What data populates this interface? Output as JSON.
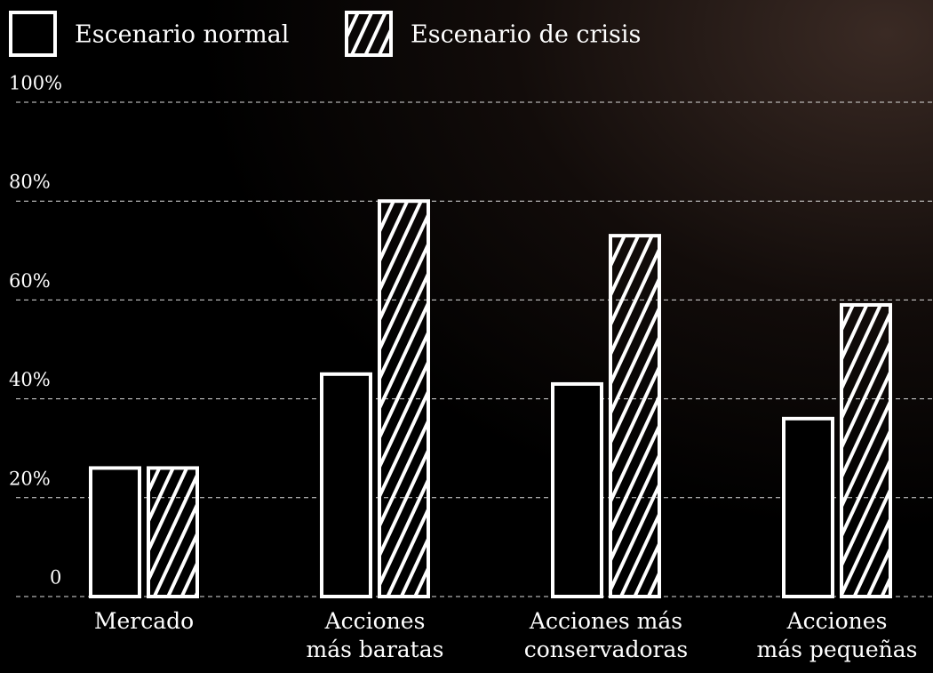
{
  "chart_data": {
    "type": "bar",
    "categories": [
      "Mercado",
      "Acciones\nmás baratas",
      "Acciones más\nconservadoras",
      "Acciones\nmás pequeñas"
    ],
    "series": [
      {
        "name": "Escenario normal",
        "color": "#ffffff",
        "values": [
          26,
          45,
          43,
          36
        ]
      },
      {
        "name": "Escenario de crisis",
        "color": "#ffffff",
        "values": [
          26,
          80,
          73,
          59
        ]
      }
    ],
    "ylim": [
      0,
      100
    ],
    "yticks": [
      0,
      {
        "value": 20,
        "label": "20%"
      },
      {
        "value": 40,
        "label": "40%"
      },
      {
        "value": 60,
        "label": "60%"
      },
      {
        "value": 80,
        "label": "80%"
      },
      {
        "value": 100,
        "label": "100%"
      }
    ],
    "grid": true,
    "legend": "top-left"
  }
}
